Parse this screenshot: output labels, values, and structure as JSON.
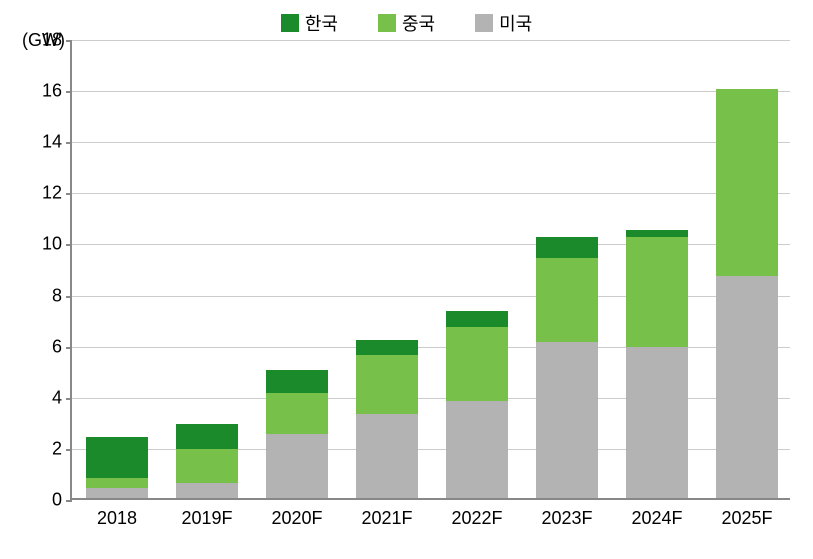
{
  "chart": {
    "type": "bar-stacked",
    "y_axis_title": "(GW)",
    "y_axis_title_fontsize": 18,
    "title_fontsize": 18,
    "label_fontsize": 18,
    "background_color": "#ffffff",
    "grid_color": "#cccccc",
    "axis_color": "#888888",
    "ylim": [
      0,
      18
    ],
    "ytick_step": 2,
    "yticks": [
      0,
      2,
      4,
      6,
      8,
      10,
      12,
      14,
      16,
      18
    ],
    "bar_width": 0.68,
    "categories": [
      "2018",
      "2019F",
      "2020F",
      "2021F",
      "2022F",
      "2023F",
      "2024F",
      "2025F"
    ],
    "series": [
      {
        "name": "미국",
        "color": "#b3b3b3"
      },
      {
        "name": "중국",
        "color": "#77c14a"
      },
      {
        "name": "한국",
        "color": "#1a8a2a"
      }
    ],
    "legend_order": [
      "한국",
      "중국",
      "미국"
    ],
    "legend_position": "top-center",
    "data": {
      "미국": [
        0.4,
        0.6,
        2.5,
        3.3,
        3.8,
        6.1,
        5.9,
        8.7
      ],
      "중국": [
        0.4,
        1.3,
        1.6,
        2.3,
        2.9,
        3.3,
        4.3,
        7.3
      ],
      "한국": [
        1.6,
        1.0,
        0.9,
        0.6,
        0.6,
        0.8,
        0.3,
        0.0
      ]
    }
  }
}
